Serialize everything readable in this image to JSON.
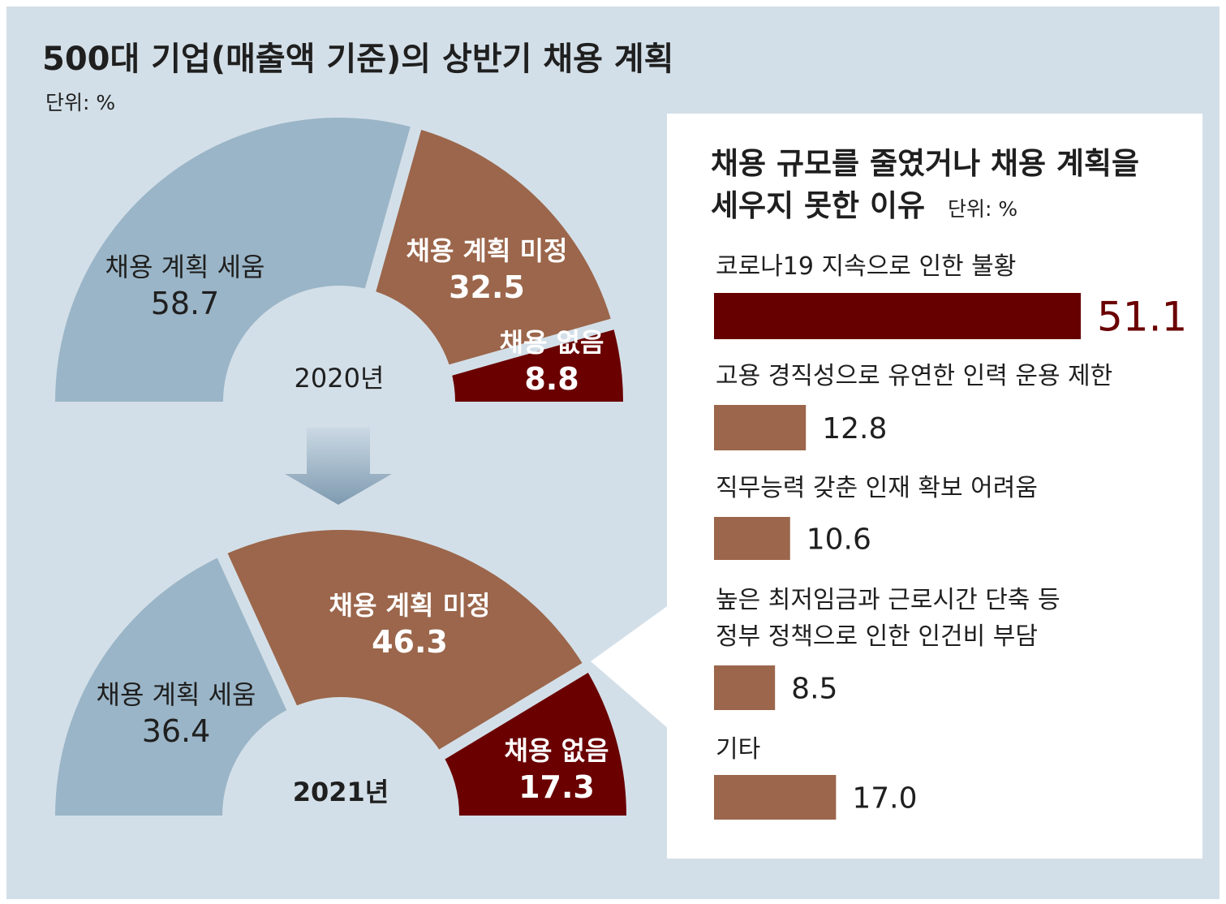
{
  "title": "500대 기업(매출액 기준)의 상반기 채용 계획",
  "unit": "단위: %",
  "colors": {
    "background": "#d3dfe8",
    "planned": "#9ab5c7",
    "undecided": "#9b664b",
    "none": "#6a0000",
    "panel": "#ffffff",
    "bar": "#9b664b",
    "bar_main": "#660000"
  },
  "chart_data": [
    {
      "type": "pie",
      "title": "2020년",
      "categories": [
        "채용 계획 세움",
        "채용 계획 미정",
        "채용 없음"
      ],
      "values": [
        58.7,
        32.5,
        8.8
      ],
      "value_labels": [
        "58.7",
        "32.5",
        "8.8"
      ]
    },
    {
      "type": "pie",
      "title": "2021년",
      "categories": [
        "채용 계획 세움",
        "채용 계획 미정",
        "채용 없음"
      ],
      "values": [
        36.4,
        46.3,
        17.3
      ],
      "value_labels": [
        "36.4",
        "46.3",
        "17.3"
      ]
    },
    {
      "type": "bar",
      "title_line1": "채용 규모를 줄였거나 채용 계획을",
      "title_line2": "세우지 못한 이유",
      "unit": "단위: %",
      "categories": [
        [
          "코로나19 지속으로 인한 불황"
        ],
        [
          "고용 경직성으로 유연한 인력 운용 제한"
        ],
        [
          "직무능력 갖춘 인재 확보 어려움"
        ],
        [
          "높은 최저임금과 근로시간 단축 등",
          "정부 정책으로 인한 인건비 부담"
        ],
        [
          "기타"
        ]
      ],
      "values": [
        51.1,
        12.8,
        10.6,
        8.5,
        17.0
      ],
      "value_labels": [
        "51.1",
        "12.8",
        "10.6",
        "8.5",
        "17.0"
      ]
    }
  ]
}
